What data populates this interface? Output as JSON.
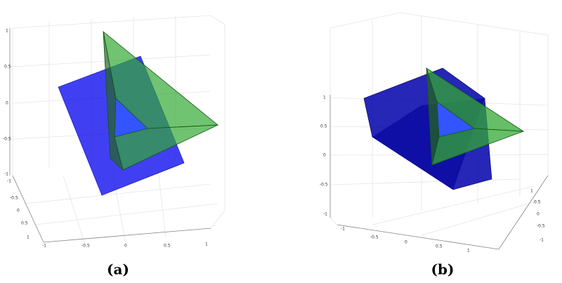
{
  "panels": [
    {
      "caption": "(a)",
      "z_ticks": [
        "1",
        "0.5",
        "0",
        "-0.5",
        "-1"
      ],
      "y_ticks": [
        "-1",
        "-0.5",
        "0",
        "0.5",
        "1"
      ],
      "x_ticks": [
        "-1",
        "-0.5",
        "0",
        "0.5",
        "1"
      ]
    },
    {
      "caption": "(b)",
      "z_ticks": [
        "1",
        "0.5",
        "0",
        "-0.5",
        "-1"
      ],
      "x_ticks": [
        "-1",
        "-0.5",
        "0",
        "0.5",
        "1"
      ],
      "y_ticks": [
        "1",
        "0.5",
        "0",
        "-0.5",
        "-1"
      ]
    }
  ]
}
